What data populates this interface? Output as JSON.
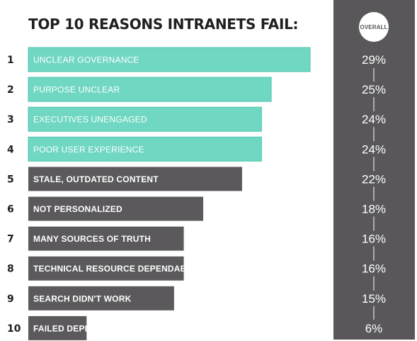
{
  "chart_data": {
    "type": "bar",
    "title": "TOP 10 REASONS INTRANETS FAIL:",
    "orientation": "horizontal",
    "ranks": [
      "1",
      "2",
      "3",
      "4",
      "5",
      "6",
      "7",
      "8",
      "9",
      "10"
    ],
    "categories": [
      "UNCLEAR GOVERNANCE",
      "PURPOSE UNCLEAR",
      "EXECUTIVES UNENGAGED",
      "POOR USER EXPERIENCE",
      "STALE, OUTDATED CONTENT",
      "NOT PERSONALIZED",
      "MANY SOURCES OF TRUTH",
      "TECHNICAL RESOURCE DEPENDABILITY",
      "SEARCH DIDN'T WORK",
      "FAILED DEPLOYMENT"
    ],
    "values": [
      29,
      25,
      24,
      24,
      22,
      18,
      16,
      16,
      15,
      6
    ],
    "value_labels": [
      "29%",
      "25%",
      "24%",
      "24%",
      "22%",
      "18%",
      "16%",
      "16%",
      "15%",
      "6%"
    ],
    "highlight_count": 4,
    "column_header": "OVERALL",
    "grid": false,
    "legend": "none"
  },
  "colors": {
    "highlight_bar": "#6fd7c2",
    "highlight_bar_border": "#4fc4ad",
    "default_bar": "#5b595c",
    "panel": "#59575a",
    "title": "#1f1f1f"
  }
}
